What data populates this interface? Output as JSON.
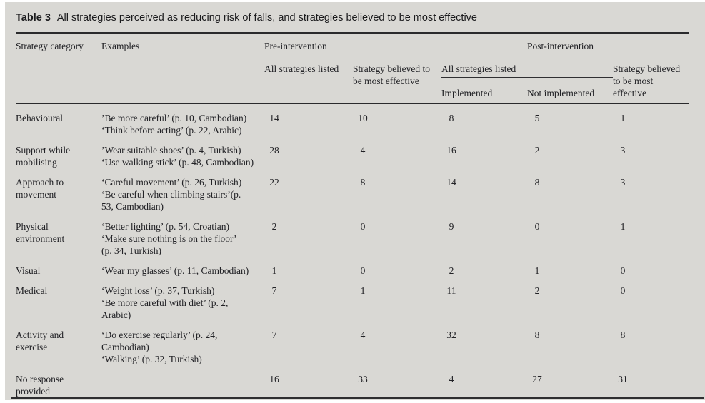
{
  "title": {
    "label": "Table 3",
    "text": "All strategies perceived as reducing risk of falls, and strategies believed to be most effective"
  },
  "header": {
    "strategy_category": "Strategy category",
    "examples": "Examples",
    "pre_intervention": "Pre-intervention",
    "post_intervention": "Post-intervention",
    "pre_all_strategies_listed": "All strategies listed",
    "pre_strategy_believed": "Strategy believed to be most effective",
    "post_all_strategies_listed": "All strategies listed",
    "implemented": "Implemented",
    "not_implemented": "Not implemented",
    "post_strategy_believed": "Strategy believed to be most effective"
  },
  "rows": [
    {
      "category": "Behavioural",
      "examples": "’Be more careful’ (p. 10, Cambodian)\n‘Think before acting’ (p. 22, Arabic)",
      "pre_all": "14",
      "pre_effective": "10",
      "post_implemented": "8",
      "post_not_implemented": "5",
      "post_effective": "1"
    },
    {
      "category": "Support while mobilising",
      "examples": "’Wear suitable shoes’ (p. 4, Turkish)\n‘Use walking stick’ (p. 48, Cambodian)",
      "pre_all": "28",
      "pre_effective": "4",
      "post_implemented": "16",
      "post_not_implemented": "2",
      "post_effective": "3"
    },
    {
      "category": "Approach to movement",
      "examples": "‘Careful movement’ (p. 26, Turkish)\n‘Be careful when climbing stairs’(p.\n53, Cambodian)",
      "pre_all": "22",
      "pre_effective": "8",
      "post_implemented": "14",
      "post_not_implemented": "8",
      "post_effective": "3"
    },
    {
      "category": "Physical environment",
      "examples": "‘Better lighting’ (p. 54, Croatian)\n‘Make sure nothing is on the floor’\n(p. 34, Turkish)",
      "pre_all": "2",
      "pre_effective": "0",
      "post_implemented": "9",
      "post_not_implemented": "0",
      "post_effective": "1"
    },
    {
      "category": "Visual",
      "examples": "‘Wear my glasses’ (p. 11, Cambodian)",
      "pre_all": "1",
      "pre_effective": "0",
      "post_implemented": "2",
      "post_not_implemented": "1",
      "post_effective": "0"
    },
    {
      "category": "Medical",
      "examples": "‘Weight loss’ (p. 37, Turkish)\n‘Be more careful with diet’ (p. 2,\nArabic)",
      "pre_all": "7",
      "pre_effective": "1",
      "post_implemented": "11",
      "post_not_implemented": "2",
      "post_effective": "0"
    },
    {
      "category": "Activity and exercise",
      "examples": "‘Do exercise regularly’ (p. 24,\nCambodian)\n‘Walking’ (p. 32, Turkish)",
      "pre_all": "7",
      "pre_effective": "4",
      "post_implemented": "32",
      "post_not_implemented": "8",
      "post_effective": "8"
    },
    {
      "category": "No response provided",
      "examples": "",
      "pre_all": "16",
      "pre_effective": "33",
      "post_implemented": "4",
      "post_not_implemented": "27",
      "post_effective": "31"
    }
  ]
}
